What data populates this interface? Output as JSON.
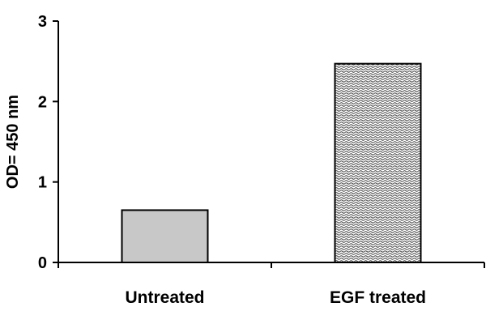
{
  "chart_data": {
    "type": "bar",
    "title": "",
    "xlabel": "",
    "ylabel": "OD= 450 nm",
    "categories": [
      "Untreated",
      "EGF treated"
    ],
    "values": [
      0.65,
      2.47
    ],
    "ylim": [
      0,
      3
    ],
    "yticks": [
      "0",
      "1",
      "2",
      "3"
    ],
    "grid": false,
    "legend": "none",
    "colors": {
      "untreated_fill": "#c8c8c8",
      "egf_pattern_light": "#ffffff",
      "egf_pattern_dark": "#3a3a3a",
      "axis": "#000000",
      "bar_stroke": "#000000"
    },
    "fills": [
      "solid-gray",
      "wavy-hatch"
    ]
  }
}
